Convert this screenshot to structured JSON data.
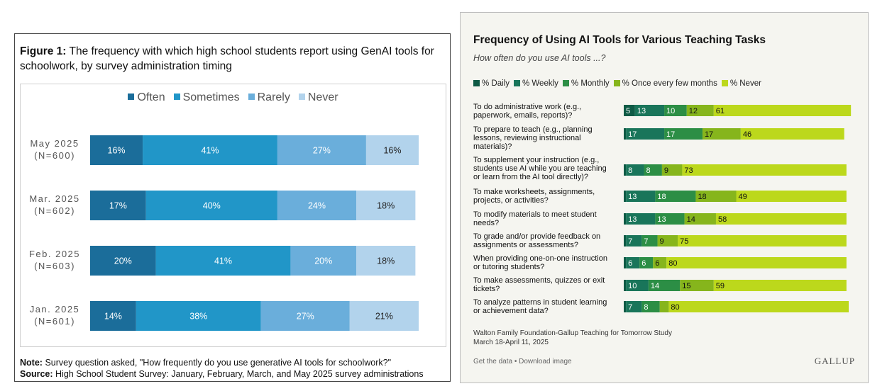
{
  "left": {
    "title_bold": "Figure 1:",
    "title_rest": "The frequency with which high school students report using GenAI tools for schoolwork, by survey administration timing",
    "note_bold": "Note:",
    "note_text": "Survey question asked, \"How frequently do you use generative AI tools for schoolwork?\"",
    "source_bold": "Source:",
    "source_text": "High School Student Survey: January, February, March, and May 2025 survey administrations"
  },
  "right": {
    "title": "Frequency of Using AI Tools for Various Teaching Tasks",
    "subtitle": "How often do you use AI tools ...?",
    "source_line1": "Walton Family Foundation-Gallup Teaching for Tomorrow Study",
    "source_line2": "March 18-April 11, 2025",
    "link_get_data": "Get the data",
    "link_separator": " • ",
    "link_download": "Download image",
    "brand": "GALLUP"
  },
  "chart_data": [
    {
      "type": "bar",
      "orientation": "horizontal",
      "stacked": true,
      "categories": [
        [
          "May 2025",
          "(N=600)"
        ],
        [
          "Mar. 2025",
          "(N=602)"
        ],
        [
          "Feb. 2025",
          "(N=603)"
        ],
        [
          "Jan. 2025",
          "(N=601)"
        ]
      ],
      "series": [
        {
          "name": "Often",
          "color": "#1b6d9a",
          "values": [
            16,
            17,
            20,
            14
          ]
        },
        {
          "name": "Sometimes",
          "color": "#2196c8",
          "values": [
            41,
            40,
            41,
            38
          ]
        },
        {
          "name": "Rarely",
          "color": "#6aaedb",
          "values": [
            27,
            24,
            20,
            27
          ]
        },
        {
          "name": "Never",
          "color": "#b2d3ec",
          "values": [
            16,
            18,
            18,
            21
          ]
        }
      ],
      "value_suffix": "%",
      "legend": "top-center",
      "xlim": [
        0,
        100
      ],
      "grid": false
    },
    {
      "type": "bar",
      "orientation": "horizontal",
      "stacked": true,
      "categories": [
        [
          "To do administrative work (e.g.,",
          "paperwork, emails, reports)?"
        ],
        [
          "To prepare to teach (e.g., planning",
          "lessons, reviewing instructional",
          "materials)?"
        ],
        [
          "To supplement your instruction (e.g.,",
          "students use AI while you are teaching",
          "or learn from the AI tool directly)?"
        ],
        [
          "To make worksheets, assignments,",
          "projects, or activities?"
        ],
        [
          "To modify materials to meet student",
          "needs?"
        ],
        [
          "To grade and/or provide feedback on",
          "assignments or assessments?"
        ],
        [
          "When providing one-on-one instruction",
          "or tutoring students?"
        ],
        [
          "To make assessments, quizzes or exit",
          "tickets?"
        ],
        [
          "To analyze patterns in student learning",
          "or achievement data?"
        ]
      ],
      "series": [
        {
          "name": "% Daily",
          "color": "#0e5a45",
          "values": [
            5,
            1,
            1,
            1,
            1,
            1,
            1,
            1,
            1
          ]
        },
        {
          "name": "% Weekly",
          "color": "#19755a",
          "values": [
            13,
            17,
            8,
            13,
            13,
            7,
            6,
            10,
            7
          ]
        },
        {
          "name": "% Monthly",
          "color": "#2c8e45",
          "values": [
            10,
            17,
            8,
            18,
            13,
            7,
            6,
            14,
            8
          ]
        },
        {
          "name": "% Once every few months",
          "color": "#86b51c",
          "values": [
            12,
            17,
            9,
            18,
            14,
            9,
            6,
            15,
            4
          ]
        },
        {
          "name": "% Never",
          "color": "#bcd81c",
          "values": [
            61,
            46,
            73,
            49,
            58,
            75,
            80,
            59,
            80
          ]
        }
      ],
      "data_labels": [
        [
          "5",
          "13",
          "10",
          "12",
          "61"
        ],
        [
          "",
          "17",
          "17",
          "17",
          "46"
        ],
        [
          "",
          "8",
          "8",
          "9",
          "73"
        ],
        [
          "",
          "13",
          "18",
          "18",
          "49"
        ],
        [
          "",
          "13",
          "13",
          "14",
          "58"
        ],
        [
          "",
          "7",
          "7",
          "9",
          "75"
        ],
        [
          "",
          "6",
          "6",
          "6",
          "80"
        ],
        [
          "",
          "10",
          "14",
          "15",
          "59"
        ],
        [
          "",
          "7",
          "8",
          "",
          "80"
        ]
      ],
      "legend": "top-left",
      "xlim": [
        0,
        100
      ],
      "grid": false
    }
  ]
}
